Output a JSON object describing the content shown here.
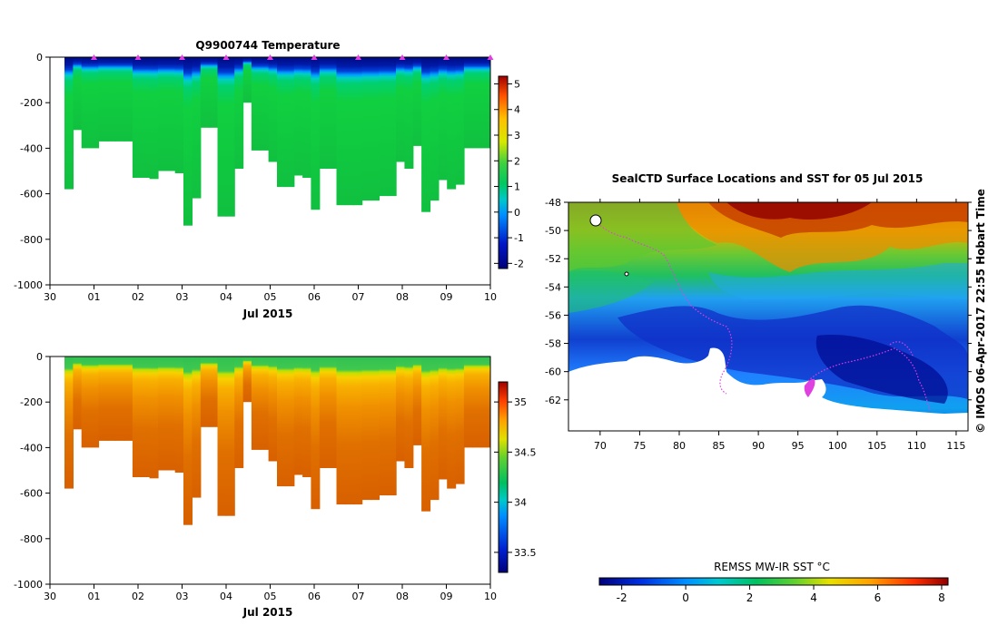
{
  "chart_data": [
    {
      "id": "temperature",
      "type": "heatmap",
      "title": "Q9900744  Temperature",
      "xlabel": "Jul 2015",
      "ylabel": "",
      "x_ticks": [
        "30",
        "01",
        "02",
        "03",
        "04",
        "05",
        "06",
        "07",
        "08",
        "09",
        "10"
      ],
      "y_ticks": [
        0,
        -200,
        -400,
        -600,
        -800,
        -1000
      ],
      "ylim": [
        -1000,
        0
      ],
      "colorbar_ticks": [
        5,
        4,
        3,
        2,
        1,
        0,
        -1,
        -2
      ],
      "colorbar_range": [
        -2.2,
        5.3
      ],
      "profile_depths_m": [
        -580,
        -320,
        -400,
        -400,
        -370,
        -370,
        -370,
        -370,
        -530,
        -530,
        -535,
        -500,
        -500,
        -510,
        -740,
        -620,
        -310,
        -310,
        -700,
        -700,
        -490,
        -200,
        -410,
        -410,
        -460,
        -570,
        -570,
        -520,
        -530,
        -670,
        -490,
        -490,
        -650,
        -650,
        -650,
        -630,
        -630,
        -610,
        -610,
        -460,
        -490,
        -390,
        -680,
        -630,
        -540,
        -580,
        -560,
        -400,
        -400,
        -400
      ],
      "marker_days": [
        "01",
        "02",
        "03",
        "04",
        "05",
        "06",
        "07",
        "08",
        "09",
        "10"
      ],
      "marker_color": "#e040e0"
    },
    {
      "id": "salinity",
      "type": "heatmap",
      "title": "",
      "xlabel": "Jul 2015",
      "ylabel": "",
      "x_ticks": [
        "30",
        "01",
        "02",
        "03",
        "04",
        "05",
        "06",
        "07",
        "08",
        "09",
        "10"
      ],
      "y_ticks": [
        0,
        -200,
        -400,
        -600,
        -800,
        -1000
      ],
      "ylim": [
        -1000,
        0
      ],
      "colorbar_ticks": [
        35,
        34.5,
        34,
        33.5
      ],
      "colorbar_range": [
        33.3,
        35.2
      ]
    },
    {
      "id": "sst_map",
      "type": "heatmap",
      "title": "SealCTD Surface Locations and SST for 05 Jul 2015",
      "xlabel": "",
      "ylabel": "",
      "x_ticks": [
        70,
        75,
        80,
        85,
        90,
        95,
        100,
        105,
        110,
        115
      ],
      "y_ticks": [
        -48,
        -50,
        -52,
        -54,
        -56,
        -58,
        -60,
        -62
      ],
      "xlim": [
        66,
        116.5
      ],
      "ylim": [
        -64.2,
        -48
      ],
      "colorbar_label": "REMSS MW-IR SST °C",
      "colorbar_ticks": [
        -2,
        0,
        2,
        4,
        6,
        8
      ],
      "colorbar_range": [
        -2.7,
        8.2
      ],
      "track_color": "#e040e0"
    }
  ],
  "credit": "© IMOS 06-Apr-2017 22:55 Hobart Time"
}
